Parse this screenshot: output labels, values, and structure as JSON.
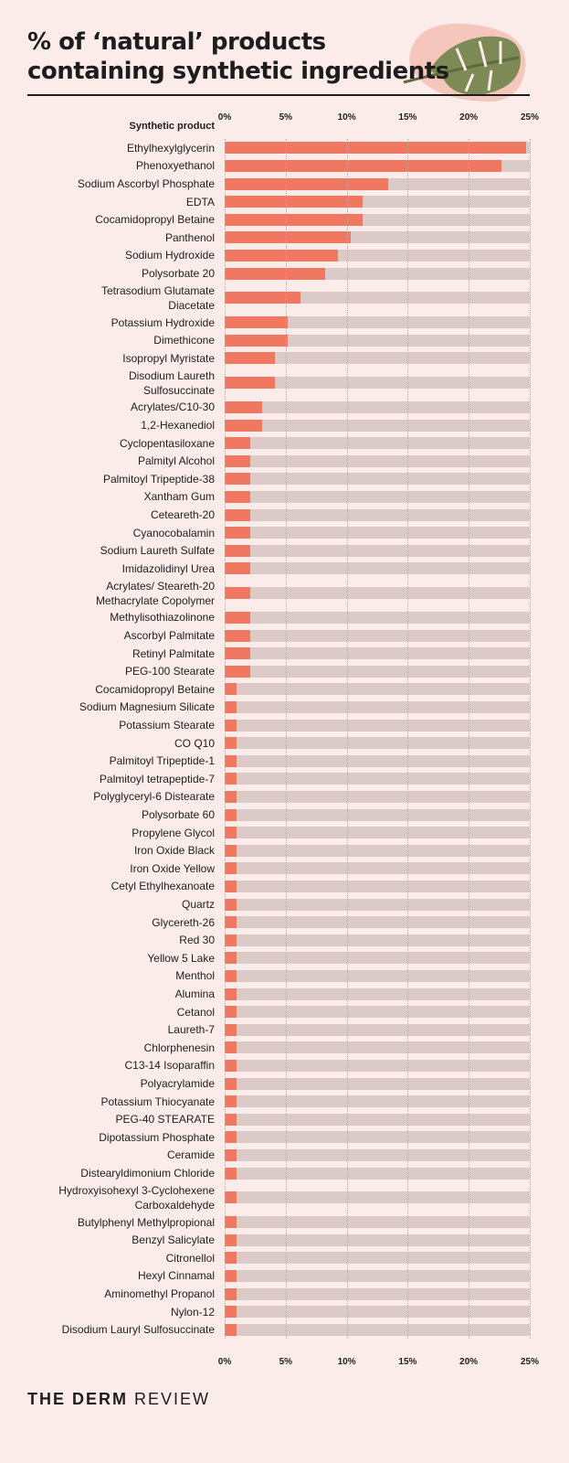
{
  "chart_data": {
    "type": "bar",
    "orientation": "horizontal",
    "title": "% of ‘natural’ products\ncontaining synthetic ingredients",
    "category_axis_label": "Synthetic product",
    "categories": [
      "Ethylhexylglycerin",
      "Phenoxyethanol",
      "Sodium Ascorbyl Phosphate",
      "EDTA",
      "Cocamidopropyl Betaine",
      "Panthenol",
      "Sodium Hydroxide",
      "Polysorbate 20",
      "Tetrasodium Glutamate\nDiacetate",
      "Potassium Hydroxide",
      "Dimethicone",
      "Isopropyl Myristate",
      "Disodium Laureth\nSulfosuccinate",
      "Acrylates/C10-30",
      "1,2-Hexanediol",
      "Cyclopentasiloxane",
      "Palmityl Alcohol",
      "Palmitoyl Tripeptide-38",
      "Xantham Gum",
      "Ceteareth-20",
      "Cyanocobalamin",
      "Sodium Laureth Sulfate",
      "Imidazolidinyl Urea",
      "Acrylates/ Steareth-20\nMethacrylate Copolymer",
      "Methylisothiazolinone",
      "Ascorbyl Palmitate",
      "Retinyl Palmitate",
      "PEG-100 Stearate",
      "Cocamidopropyl Betaine",
      "Sodium Magnesium Silicate",
      "Potassium Stearate",
      "CO Q10",
      "Palmitoyl Tripeptide-1",
      "Palmitoyl tetrapeptide-7",
      "Polyglyceryl-6 Distearate",
      "Polysorbate 60",
      "Propylene Glycol",
      "Iron Oxide Black",
      "Iron Oxide Yellow",
      "Cetyl Ethylhexanoate",
      "Quartz",
      "Glycereth-26",
      "Red 30",
      "Yellow 5 Lake",
      "Menthol",
      "Alumina",
      "Cetanol",
      "Laureth-7",
      "Chlorphenesin",
      "C13-14 Isoparaffin",
      "Polyacrylamide",
      "Potassium Thiocyanate",
      "PEG-40 STEARATE",
      "Dipotassium Phosphate",
      "Ceramide",
      "Distearyldimonium Chloride",
      "Hydroxyisohexyl 3-Cyclohexene\nCarboxaldehyde",
      "Butylphenyl Methylpropional",
      "Benzyl Salicylate",
      "Citronellol",
      "Hexyl Cinnamal",
      "Aminomethyl Propanol",
      "Nylon-12",
      "Disodium Lauryl Sulfosuccinate"
    ],
    "values": [
      24.7,
      22.7,
      13.4,
      11.3,
      11.3,
      10.3,
      9.3,
      8.2,
      6.2,
      5.2,
      5.2,
      4.1,
      4.1,
      3.1,
      3.1,
      2.1,
      2.1,
      2.1,
      2.1,
      2.1,
      2.1,
      2.1,
      2.1,
      2.1,
      2.1,
      2.1,
      2.1,
      2.1,
      1.0,
      1.0,
      1.0,
      1.0,
      1.0,
      1.0,
      1.0,
      1.0,
      1.0,
      1.0,
      1.0,
      1.0,
      1.0,
      1.0,
      1.0,
      1.0,
      1.0,
      1.0,
      1.0,
      1.0,
      1.0,
      1.0,
      1.0,
      1.0,
      1.0,
      1.0,
      1.0,
      1.0,
      1.0,
      1.0,
      1.0,
      1.0,
      1.0,
      1.0,
      1.0,
      1.0
    ],
    "color": "#f07860",
    "track_color": "#dccac8",
    "xlim": [
      0,
      25
    ],
    "xticks": [
      {
        "value": 0,
        "label": "0%"
      },
      {
        "value": 5,
        "label": "5%"
      },
      {
        "value": 10,
        "label": "10%"
      },
      {
        "value": 15,
        "label": "15%"
      },
      {
        "value": 20,
        "label": "20%"
      },
      {
        "value": 25,
        "label": "25%"
      }
    ],
    "grid": true,
    "brand": [
      "THE DERM",
      "REVIEW"
    ]
  }
}
